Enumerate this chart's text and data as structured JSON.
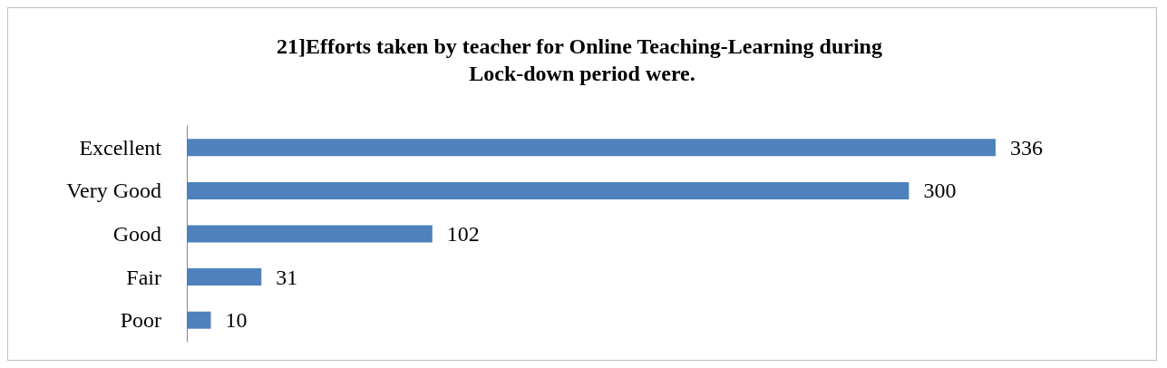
{
  "chart_data": {
    "type": "bar",
    "orientation": "horizontal",
    "title": "21]Efforts taken by teacher for Online Teaching-Learning during Lock-down period were.",
    "categories": [
      "Excellent",
      "Very Good",
      "Good",
      "Fair",
      "Poor"
    ],
    "values": [
      336,
      300,
      102,
      31,
      10
    ],
    "color": "#4f81bd",
    "data_labels": true
  }
}
